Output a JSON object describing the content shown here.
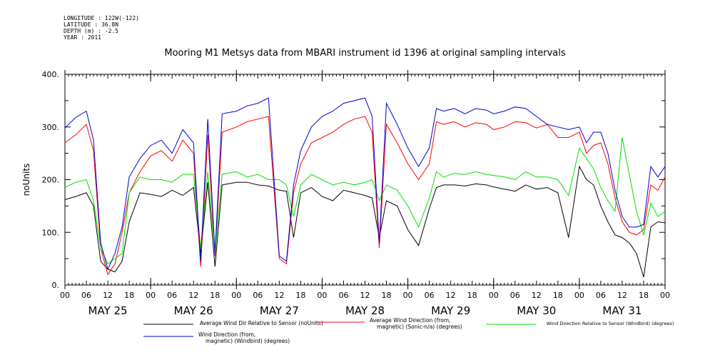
{
  "header": {
    "longitude": "LONGITUDE : 122W(-122)",
    "latitude": "LATITUDE : 36.8N",
    "depth": "DEPTH (m) : -2.5",
    "year": "YEAR : 2011"
  },
  "chart_data": {
    "type": "line",
    "title": "Mooring M1 Metsys data from MBARI instrument id 1396 at original sampling intervals",
    "ylabel": "noUnits",
    "xlabel": "",
    "ylim": [
      0,
      400
    ],
    "y_ticks": [
      "0.",
      "100.",
      "200.",
      "300.",
      "400."
    ],
    "x_range_hours": [
      0,
      168
    ],
    "x_tick_labels": [
      "00",
      "06",
      "12",
      "18",
      "00",
      "06",
      "12",
      "18",
      "00",
      "06",
      "12",
      "18",
      "00",
      "06",
      "12",
      "18",
      "00",
      "06",
      "12",
      "18",
      "00",
      "06",
      "12",
      "18",
      "00",
      "06",
      "12",
      "18",
      "00"
    ],
    "day_labels": [
      "MAY 25",
      "MAY 26",
      "MAY 27",
      "MAY 28",
      "MAY 29",
      "MAY 30",
      "MAY 31"
    ],
    "grid": false,
    "legend_placement": "bottom",
    "x_hours": [
      0,
      3,
      6,
      8,
      10,
      12,
      14,
      16,
      18,
      21,
      24,
      27,
      30,
      33,
      36,
      38,
      40,
      42,
      44,
      48,
      51,
      54,
      57,
      60,
      62,
      64,
      66,
      69,
      72,
      75,
      78,
      81,
      84,
      86,
      88,
      90,
      93,
      96,
      99,
      102,
      104,
      106,
      109,
      112,
      115,
      118,
      120,
      123,
      126,
      129,
      132,
      135,
      138,
      141,
      144,
      146,
      148,
      150,
      152,
      154,
      156,
      158,
      160,
      162,
      164,
      166,
      168
    ],
    "series": [
      {
        "name": "Average Wind Dir Relative to Sensor (noUnits)",
        "color": "#000000",
        "values": [
          162,
          168,
          175,
          150,
          45,
          30,
          25,
          45,
          120,
          175,
          172,
          168,
          180,
          170,
          185,
          60,
          195,
          35,
          190,
          195,
          195,
          190,
          188,
          180,
          178,
          90,
          175,
          185,
          168,
          160,
          180,
          175,
          170,
          165,
          90,
          160,
          150,
          105,
          75,
          145,
          185,
          190,
          190,
          188,
          192,
          190,
          186,
          182,
          178,
          190,
          182,
          185,
          175,
          90,
          225,
          200,
          190,
          150,
          120,
          95,
          90,
          80,
          60,
          15,
          110,
          120,
          118
        ]
      },
      {
        "name": "Average Wind Direction (from, magnetic) (Sonic-n/a) (degrees)",
        "color": "#ff0000",
        "values": [
          270,
          285,
          305,
          255,
          70,
          20,
          40,
          100,
          175,
          215,
          245,
          255,
          235,
          275,
          250,
          35,
          285,
          55,
          290,
          300,
          310,
          315,
          320,
          50,
          40,
          175,
          230,
          270,
          280,
          290,
          305,
          315,
          320,
          290,
          70,
          305,
          270,
          230,
          200,
          230,
          310,
          305,
          310,
          300,
          308,
          305,
          295,
          300,
          310,
          308,
          298,
          305,
          280,
          280,
          290,
          250,
          265,
          270,
          230,
          165,
          120,
          100,
          95,
          105,
          190,
          180,
          205
        ]
      },
      {
        "name": "Wind Direction Relative to Sensor (Windbird) (degrees)",
        "color": "#00e000",
        "values": [
          185,
          195,
          200,
          160,
          70,
          40,
          50,
          60,
          175,
          205,
          200,
          200,
          195,
          210,
          210,
          70,
          215,
          60,
          210,
          215,
          205,
          210,
          200,
          200,
          190,
          130,
          190,
          210,
          200,
          190,
          195,
          190,
          195,
          200,
          160,
          190,
          180,
          150,
          110,
          165,
          215,
          205,
          212,
          210,
          215,
          210,
          208,
          205,
          200,
          215,
          205,
          205,
          200,
          170,
          260,
          240,
          220,
          185,
          160,
          140,
          280,
          210,
          140,
          95,
          155,
          130,
          140
        ]
      },
      {
        "name": "Wind Direction (from, magnetic) (Windbird) (degrees)",
        "color": "#0000cc",
        "values": [
          298,
          318,
          330,
          275,
          80,
          30,
          60,
          110,
          205,
          240,
          265,
          275,
          250,
          295,
          270,
          45,
          315,
          60,
          325,
          330,
          340,
          345,
          355,
          55,
          45,
          190,
          255,
          300,
          320,
          330,
          345,
          350,
          355,
          320,
          80,
          345,
          305,
          260,
          225,
          260,
          335,
          330,
          335,
          325,
          335,
          332,
          325,
          330,
          338,
          335,
          320,
          305,
          300,
          295,
          300,
          270,
          290,
          290,
          250,
          180,
          130,
          110,
          110,
          115,
          225,
          205,
          225
        ]
      }
    ]
  }
}
